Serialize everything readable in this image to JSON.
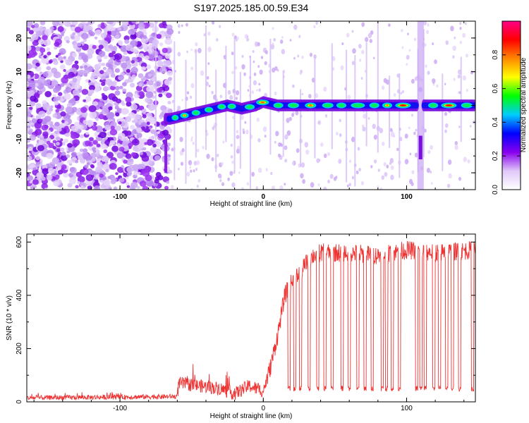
{
  "title": "S197.2025.185.00.59.E34",
  "colors": {
    "snr_line": "#ee3333",
    "colormap": [
      "#ffffff",
      "#e0c8f8",
      "#8800ee",
      "#0000ff",
      "#00ccff",
      "#00ff00",
      "#ffff00",
      "#ff8800",
      "#ff0000",
      "#ff0088"
    ]
  },
  "chart_data": [
    {
      "type": "heatmap",
      "xlabel": "Height of straight line (km)",
      "ylabel": "Frequency (Hz)",
      "xlim": [
        -165,
        148
      ],
      "ylim": [
        -25,
        25
      ],
      "x_ticks": [
        -100,
        0,
        100
      ],
      "x_tick_labels": [
        "-100",
        "0",
        "100"
      ],
      "y_ticks": [
        -20,
        -10,
        0,
        10,
        20
      ],
      "y_tick_labels": [
        "-20",
        "-10",
        "0",
        "10",
        "20"
      ],
      "colorbar": {
        "label": "Normalized spectral amplitude",
        "range": [
          0,
          1
        ],
        "ticks": [
          0.0,
          0.2,
          0.4,
          0.6,
          0.8
        ],
        "tick_labels": [
          "0.0",
          "0.2",
          "0.4",
          "0.6",
          "0.8"
        ]
      },
      "ridge": {
        "x": [
          -65,
          -55,
          -45,
          -35,
          -25,
          -15,
          -5,
          0,
          10,
          20,
          40,
          60,
          80,
          100,
          108,
          115,
          130,
          145
        ],
        "y": [
          -4,
          -3,
          -2,
          -1,
          0,
          -1,
          0,
          1,
          0,
          0,
          0,
          0,
          0,
          0,
          0,
          0,
          0,
          0
        ]
      }
    },
    {
      "type": "line",
      "xlabel": "Height of straight line (km)",
      "ylabel": "SNR (10 * v/v)",
      "xlim": [
        -165,
        148
      ],
      "ylim": [
        0,
        630
      ],
      "x_ticks": [
        -100,
        0,
        100
      ],
      "x_tick_labels": [
        "-100",
        "0",
        "100"
      ],
      "y_ticks": [
        0,
        200,
        400,
        600
      ],
      "y_tick_labels": [
        "0",
        "200",
        "400",
        "600"
      ],
      "series_keypoints": {
        "x": [
          -165,
          -60,
          -59,
          -30,
          -20,
          -10,
          0,
          5,
          10,
          15,
          20,
          25,
          30,
          35,
          40,
          60,
          80,
          100,
          120,
          148
        ],
        "y": [
          15,
          20,
          70,
          50,
          30,
          60,
          40,
          130,
          250,
          400,
          450,
          480,
          520,
          550,
          560,
          560,
          550,
          570,
          560,
          570
        ]
      },
      "dropouts_x": [
        18,
        22,
        26,
        32,
        38,
        43,
        48,
        55,
        60,
        66,
        71,
        76,
        83,
        86,
        90,
        95,
        107,
        110,
        113,
        119,
        123,
        128,
        132,
        137,
        146
      ],
      "dropout_level": 50
    }
  ]
}
